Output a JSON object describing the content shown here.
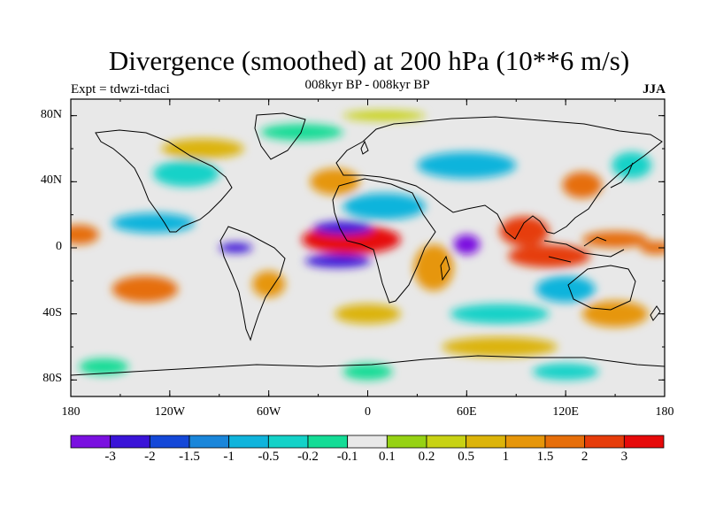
{
  "title": "Divergence (smoothed) at 200 hPa (10**6 m/s)",
  "subtitle": "008kyr BP - 008kyr BP",
  "expt_label": "Expt = tdwzi-tdaci",
  "season": "JJA",
  "map": {
    "lon_range": [
      -180,
      180
    ],
    "lat_range": [
      -90,
      90
    ],
    "lat_ticks": [
      {
        "value": 80,
        "label": "80N"
      },
      {
        "value": 40,
        "label": "40N"
      },
      {
        "value": 0,
        "label": "0"
      },
      {
        "value": -40,
        "label": "40S"
      },
      {
        "value": -80,
        "label": "80S"
      }
    ],
    "lon_ticks": [
      {
        "value": -180,
        "label": "180"
      },
      {
        "value": -120,
        "label": "120W"
      },
      {
        "value": -60,
        "label": "60W"
      },
      {
        "value": 0,
        "label": "0"
      },
      {
        "value": 60,
        "label": "60E"
      },
      {
        "value": 120,
        "label": "120E"
      },
      {
        "value": 180,
        "label": "180"
      }
    ]
  },
  "colorbar": {
    "colors": [
      "#7a10e0",
      "#3a14d8",
      "#1448d8",
      "#1a86da",
      "#10b4dc",
      "#14d2c8",
      "#14dc96",
      "#e8e8e8",
      "#96d214",
      "#c8d214",
      "#dcb40a",
      "#e6960a",
      "#e66e0a",
      "#e63c0a",
      "#e60a0a"
    ],
    "tick_labels": [
      "-3",
      "-2",
      "-1.5",
      "-1",
      "-0.5",
      "-0.2",
      "-0.1",
      "0.1",
      "0.2",
      "0.5",
      "1",
      "1.5",
      "2",
      "3"
    ]
  },
  "field_blobs": [
    {
      "lon": -10,
      "lat": 5,
      "rx": 30,
      "ry": 9,
      "cls": 14,
      "name": "atlantic-max"
    },
    {
      "lon": -15,
      "lat": 12,
      "rx": 18,
      "ry": 4,
      "cls": 1,
      "name": "atlantic-min-north"
    },
    {
      "lon": -18,
      "lat": -8,
      "rx": 20,
      "ry": 4,
      "cls": 1,
      "name": "atlantic-min-south"
    },
    {
      "lon": 60,
      "lat": 2,
      "rx": 8,
      "ry": 6,
      "cls": 0,
      "name": "indian-ocean-min"
    },
    {
      "lon": -80,
      "lat": 0,
      "rx": 10,
      "ry": 3,
      "cls": 1,
      "name": "east-pacific-min"
    },
    {
      "lon": -135,
      "lat": -25,
      "rx": 20,
      "ry": 8,
      "cls": 12,
      "name": "south-pacific-max"
    },
    {
      "lon": 95,
      "lat": 10,
      "rx": 15,
      "ry": 9,
      "cls": 13,
      "name": "bay-of-bengal-max"
    },
    {
      "lon": 110,
      "lat": -5,
      "rx": 25,
      "ry": 7,
      "cls": 13,
      "name": "maritime-continent-max"
    },
    {
      "lon": 150,
      "lat": 5,
      "rx": 20,
      "ry": 5,
      "cls": 12,
      "name": "west-pacific-max"
    },
    {
      "lon": 175,
      "lat": 0,
      "rx": 10,
      "ry": 4,
      "cls": 12,
      "name": "dateline-max"
    },
    {
      "lon": -20,
      "lat": 40,
      "rx": 15,
      "ry": 8,
      "cls": 11,
      "name": "north-atlantic-max"
    },
    {
      "lon": 40,
      "lat": -12,
      "rx": 12,
      "ry": 14,
      "cls": 11,
      "name": "east-africa-max"
    },
    {
      "lon": -175,
      "lat": 8,
      "rx": 12,
      "ry": 6,
      "cls": 12,
      "name": "central-pacific-max"
    },
    {
      "lon": -60,
      "lat": -22,
      "rx": 10,
      "ry": 8,
      "cls": 11,
      "name": "south-america-max"
    },
    {
      "lon": 130,
      "lat": 38,
      "rx": 12,
      "ry": 8,
      "cls": 12,
      "name": "east-asia-max"
    },
    {
      "lon": 10,
      "lat": 25,
      "rx": 25,
      "ry": 8,
      "cls": 4,
      "name": "sahara-min"
    },
    {
      "lon": 120,
      "lat": -25,
      "rx": 18,
      "ry": 8,
      "cls": 4,
      "name": "australia-min"
    },
    {
      "lon": -130,
      "lat": 15,
      "rx": 25,
      "ry": 6,
      "cls": 4,
      "name": "north-pacific-min"
    },
    {
      "lon": 60,
      "lat": 50,
      "rx": 30,
      "ry": 8,
      "cls": 4,
      "name": "siberia-min"
    },
    {
      "lon": -110,
      "lat": 45,
      "rx": 20,
      "ry": 8,
      "cls": 5,
      "name": "north-america-min"
    },
    {
      "lon": 80,
      "lat": -40,
      "rx": 30,
      "ry": 6,
      "cls": 5,
      "name": "southern-indian-min"
    },
    {
      "lon": -100,
      "lat": 60,
      "rx": 25,
      "ry": 6,
      "cls": 10,
      "name": "canada-max"
    },
    {
      "lon": 0,
      "lat": -40,
      "rx": 20,
      "ry": 6,
      "cls": 10,
      "name": "south-atlantic-max"
    },
    {
      "lon": 80,
      "lat": -60,
      "rx": 35,
      "ry": 6,
      "cls": 10,
      "name": "southern-ocean-max"
    },
    {
      "lon": 0,
      "lat": -75,
      "rx": 15,
      "ry": 5,
      "cls": 6,
      "name": "antarctic-min-a"
    },
    {
      "lon": 120,
      "lat": -75,
      "rx": 20,
      "ry": 5,
      "cls": 5,
      "name": "antarctic-min-b"
    },
    {
      "lon": -160,
      "lat": -72,
      "rx": 15,
      "ry": 5,
      "cls": 6,
      "name": "antarctic-min-c"
    },
    {
      "lon": -40,
      "lat": 70,
      "rx": 25,
      "ry": 5,
      "cls": 6,
      "name": "greenland-min"
    },
    {
      "lon": 10,
      "lat": 80,
      "rx": 25,
      "ry": 3,
      "cls": 9,
      "name": "arctic-max"
    },
    {
      "lon": 160,
      "lat": 50,
      "rx": 12,
      "ry": 8,
      "cls": 5,
      "name": "kamchatka-min"
    },
    {
      "lon": 150,
      "lat": -40,
      "rx": 20,
      "ry": 8,
      "cls": 11,
      "name": "tasman-max"
    }
  ]
}
